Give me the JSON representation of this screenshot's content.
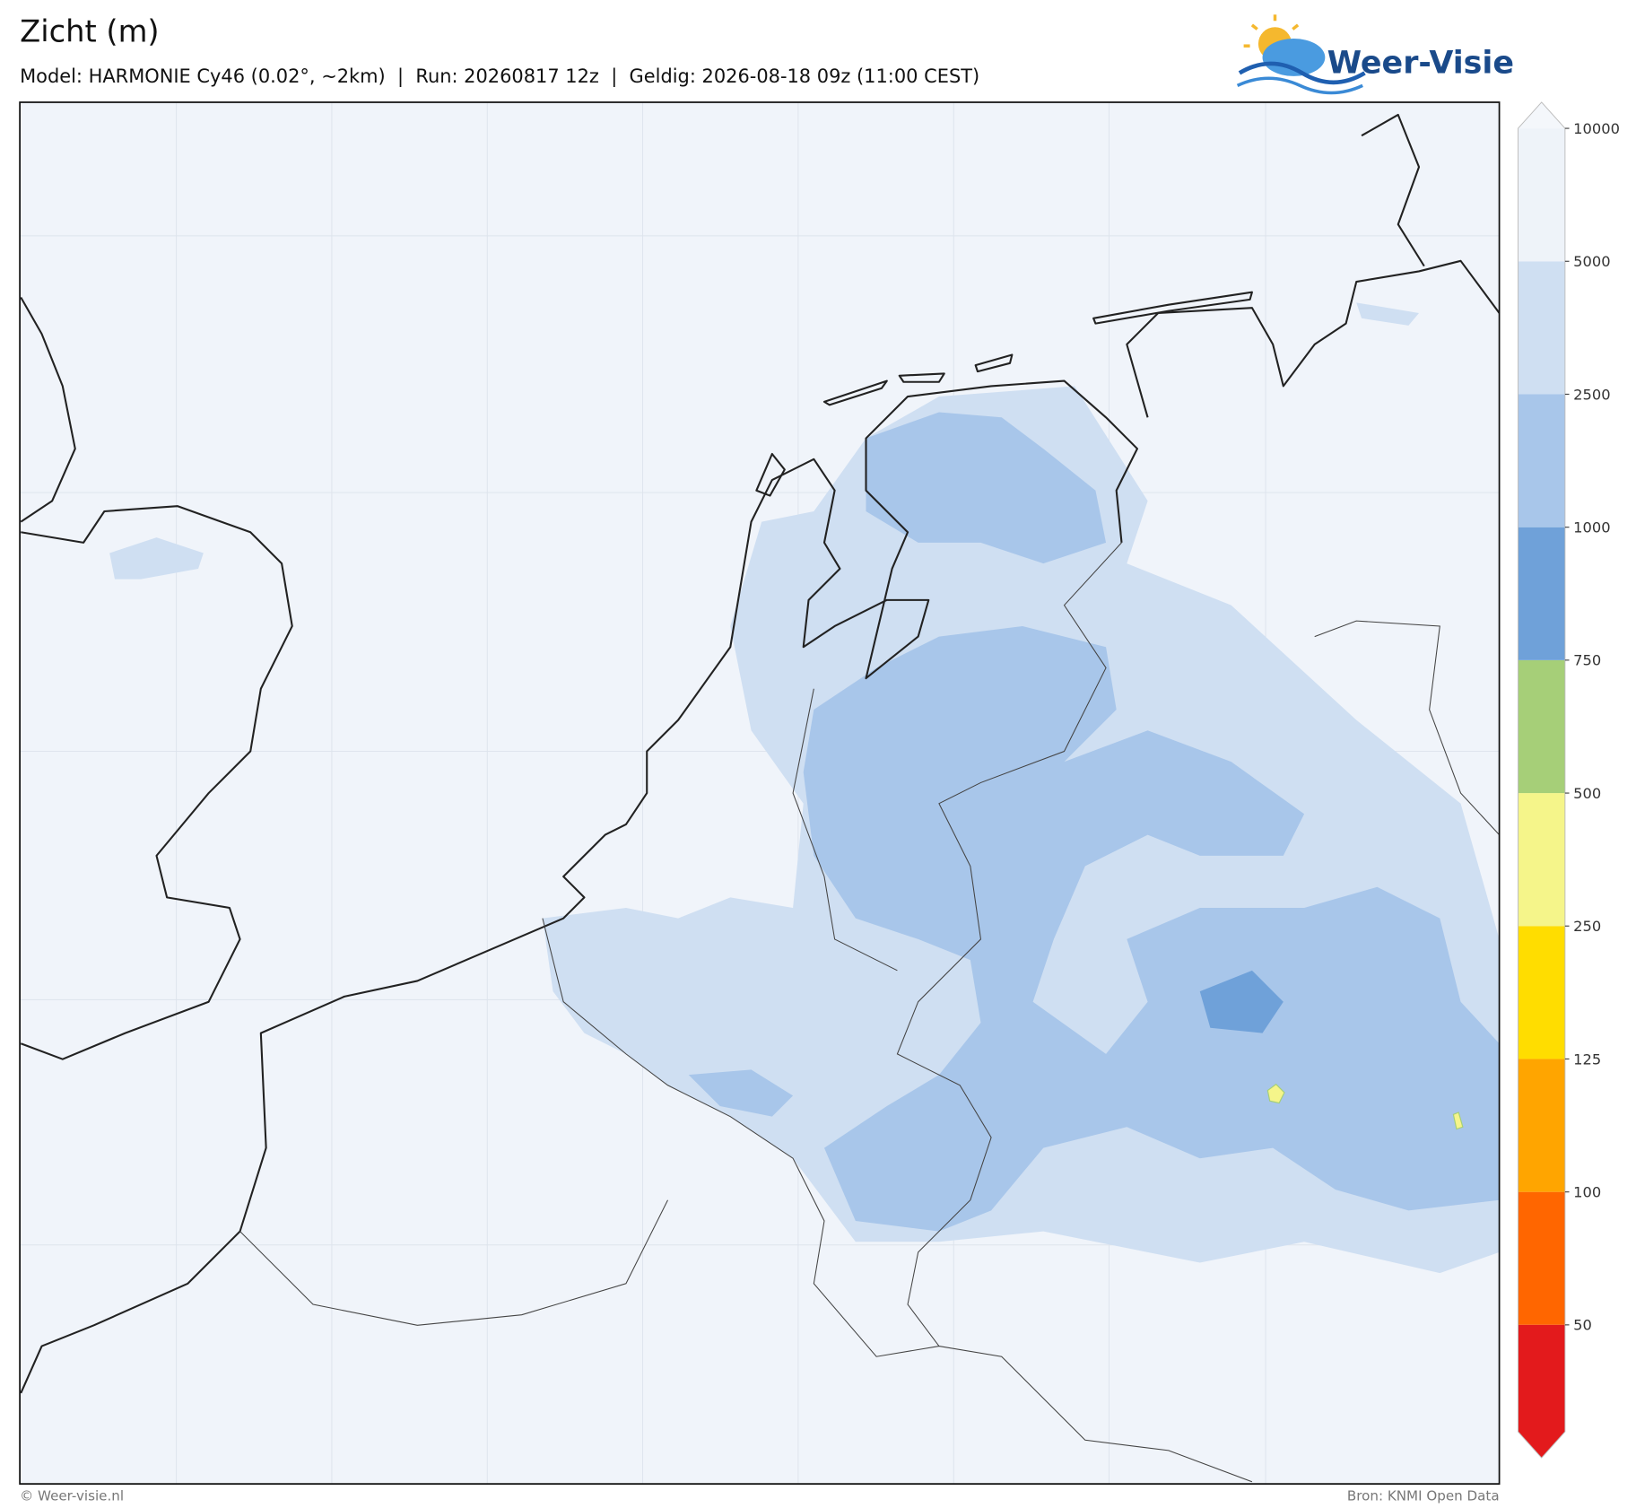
{
  "header": {
    "title": "Zicht (m)",
    "subtitle": "Model: HARMONIE Cy46 (0.02°, ~2km)  |  Run: 20260817 12z  |  Geldig: 2026-08-18 09z (11:00 CEST)",
    "logo": "Weer-Visie"
  },
  "colorbar": {
    "levels": [
      50,
      100,
      125,
      250,
      500,
      750,
      1000,
      2500,
      5000,
      10000
    ],
    "colors": [
      "#e31a1c",
      "#ff6600",
      "#ffa500",
      "#ffdd00",
      "#f5f58a",
      "#a6cf78",
      "#6fa1d9",
      "#a8c6ea",
      "#cfdff2",
      "#eef3f9",
      "#f4f7fb"
    ]
  },
  "footer": {
    "left": "© Weer-visie.nl",
    "right": "Bron: KNMI Open Data"
  }
}
